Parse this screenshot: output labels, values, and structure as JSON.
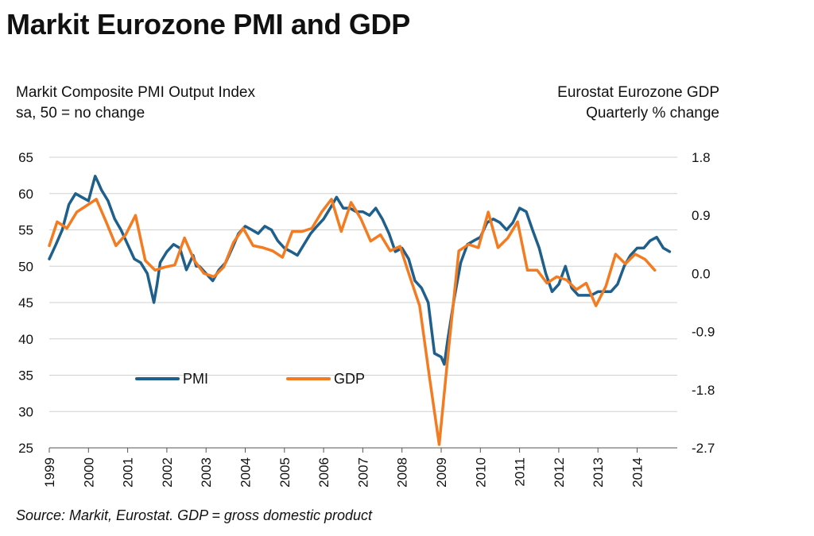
{
  "title": "Markit Eurozone PMI and GDP",
  "left_axis_label": [
    "Markit Composite PMI Output Index",
    "sa, 50 = no change"
  ],
  "right_axis_label": [
    "Eurostat Eurozone GDP",
    "Quarterly % change"
  ],
  "source": "Source: Markit, Eurostat. GDP = gross domestic product",
  "colors": {
    "pmi": "#1f5f8b",
    "gdp": "#f47b20",
    "grid": "#d0d0d0"
  },
  "chart_data": {
    "type": "line",
    "x_ticks": [
      "1999",
      "2000",
      "2001",
      "2002",
      "2003",
      "2004",
      "2005",
      "2006",
      "2007",
      "2008",
      "2009",
      "2010",
      "2011",
      "2012",
      "2013",
      "2014"
    ],
    "y_left": {
      "min": 25,
      "max": 65,
      "ticks": [
        "25",
        "30",
        "35",
        "40",
        "45",
        "50",
        "55",
        "60",
        "65"
      ]
    },
    "y_right": {
      "min": -2.7,
      "max": 1.8,
      "ticks": [
        "-2.7",
        "-1.8",
        "-0.9",
        "0.0",
        "0.9",
        "1.8"
      ]
    },
    "legend": [
      {
        "name": "PMI"
      },
      {
        "name": "GDP"
      }
    ],
    "legend_position": "lower-left",
    "grid": "horizontal",
    "series": [
      {
        "name": "PMI",
        "axis": "left",
        "x": [
          1999.0,
          1999.17,
          1999.33,
          1999.5,
          1999.67,
          1999.83,
          2000.0,
          2000.17,
          2000.25,
          2000.33,
          2000.5,
          2000.67,
          2000.83,
          2001.0,
          2001.17,
          2001.33,
          2001.5,
          2001.67,
          2001.75,
          2001.83,
          2002.0,
          2002.17,
          2002.33,
          2002.5,
          2002.67,
          2002.75,
          2002.83,
          2003.0,
          2003.17,
          2003.33,
          2003.5,
          2003.67,
          2003.83,
          2004.0,
          2004.17,
          2004.33,
          2004.5,
          2004.67,
          2004.83,
          2005.0,
          2005.17,
          2005.33,
          2005.5,
          2005.67,
          2005.83,
          2006.0,
          2006.17,
          2006.33,
          2006.5,
          2006.67,
          2006.83,
          2007.0,
          2007.17,
          2007.33,
          2007.5,
          2007.67,
          2007.83,
          2008.0,
          2008.17,
          2008.33,
          2008.5,
          2008.67,
          2008.83,
          2009.0,
          2009.08,
          2009.17,
          2009.33,
          2009.5,
          2009.67,
          2009.83,
          2010.0,
          2010.17,
          2010.33,
          2010.5,
          2010.67,
          2010.83,
          2011.0,
          2011.17,
          2011.33,
          2011.5,
          2011.67,
          2011.83,
          2012.0,
          2012.17,
          2012.33,
          2012.5,
          2012.67,
          2012.83,
          2013.0,
          2013.17,
          2013.33,
          2013.5,
          2013.67,
          2013.83,
          2014.0,
          2014.17,
          2014.33,
          2014.5,
          2014.67,
          2014.83
        ],
        "values": [
          51.0,
          53.0,
          55.0,
          58.5,
          60.0,
          59.5,
          59.0,
          62.4,
          61.5,
          60.5,
          59.0,
          56.5,
          55.0,
          53.0,
          51.0,
          50.5,
          49.0,
          45.0,
          47.5,
          50.5,
          52.0,
          53.0,
          52.5,
          49.5,
          51.5,
          50.0,
          50.0,
          49.0,
          48.0,
          49.5,
          50.5,
          52.5,
          54.5,
          55.5,
          55.0,
          54.5,
          55.5,
          55.0,
          53.5,
          52.5,
          52.0,
          51.5,
          53.0,
          54.5,
          55.5,
          56.5,
          58.0,
          59.5,
          58.0,
          58.0,
          57.5,
          57.5,
          57.0,
          58.0,
          56.5,
          54.5,
          52.0,
          52.5,
          51.0,
          48.0,
          47.0,
          45.0,
          38.0,
          37.5,
          36.5,
          40.0,
          45.5,
          50.5,
          53.0,
          53.5,
          54.0,
          56.0,
          56.5,
          56.0,
          55.0,
          56.0,
          58.0,
          57.5,
          55.0,
          52.5,
          49.0,
          46.5,
          47.5,
          50.0,
          47.0,
          46.0,
          46.0,
          46.0,
          46.5,
          46.5,
          46.5,
          47.5,
          50.0,
          51.5,
          52.5,
          52.5,
          53.5,
          54.0,
          52.5,
          52.0
        ]
      },
      {
        "name": "GDP",
        "axis": "right",
        "x": [
          1999.0,
          1999.2,
          1999.45,
          1999.7,
          1999.95,
          2000.2,
          2000.45,
          2000.7,
          2000.95,
          2001.2,
          2001.45,
          2001.7,
          2001.95,
          2002.2,
          2002.45,
          2002.7,
          2002.95,
          2003.2,
          2003.45,
          2003.7,
          2003.95,
          2004.2,
          2004.45,
          2004.7,
          2004.95,
          2005.2,
          2005.45,
          2005.7,
          2005.95,
          2006.2,
          2006.45,
          2006.7,
          2006.95,
          2007.2,
          2007.45,
          2007.7,
          2007.95,
          2008.2,
          2008.45,
          2008.7,
          2008.95,
          2009.2,
          2009.45,
          2009.7,
          2009.95,
          2010.2,
          2010.45,
          2010.7,
          2010.95,
          2011.2,
          2011.45,
          2011.7,
          2011.95,
          2012.2,
          2012.45,
          2012.7,
          2012.95,
          2013.2,
          2013.45,
          2013.7,
          2013.95,
          2014.2,
          2014.45
        ],
        "values": [
          0.43,
          0.8,
          0.7,
          0.95,
          1.05,
          1.15,
          0.8,
          0.43,
          0.6,
          0.9,
          0.2,
          0.05,
          0.1,
          0.13,
          0.55,
          0.2,
          0.0,
          -0.05,
          0.1,
          0.48,
          0.7,
          0.43,
          0.4,
          0.35,
          0.25,
          0.65,
          0.65,
          0.7,
          0.95,
          1.15,
          0.65,
          1.1,
          0.85,
          0.5,
          0.6,
          0.35,
          0.42,
          -0.05,
          -0.5,
          -1.6,
          -2.65,
          -1.1,
          0.35,
          0.45,
          0.4,
          0.95,
          0.4,
          0.55,
          0.8,
          0.05,
          0.05,
          -0.15,
          -0.05,
          -0.1,
          -0.25,
          -0.15,
          -0.5,
          -0.2,
          0.3,
          0.15,
          0.3,
          0.22,
          0.05
        ]
      }
    ]
  }
}
